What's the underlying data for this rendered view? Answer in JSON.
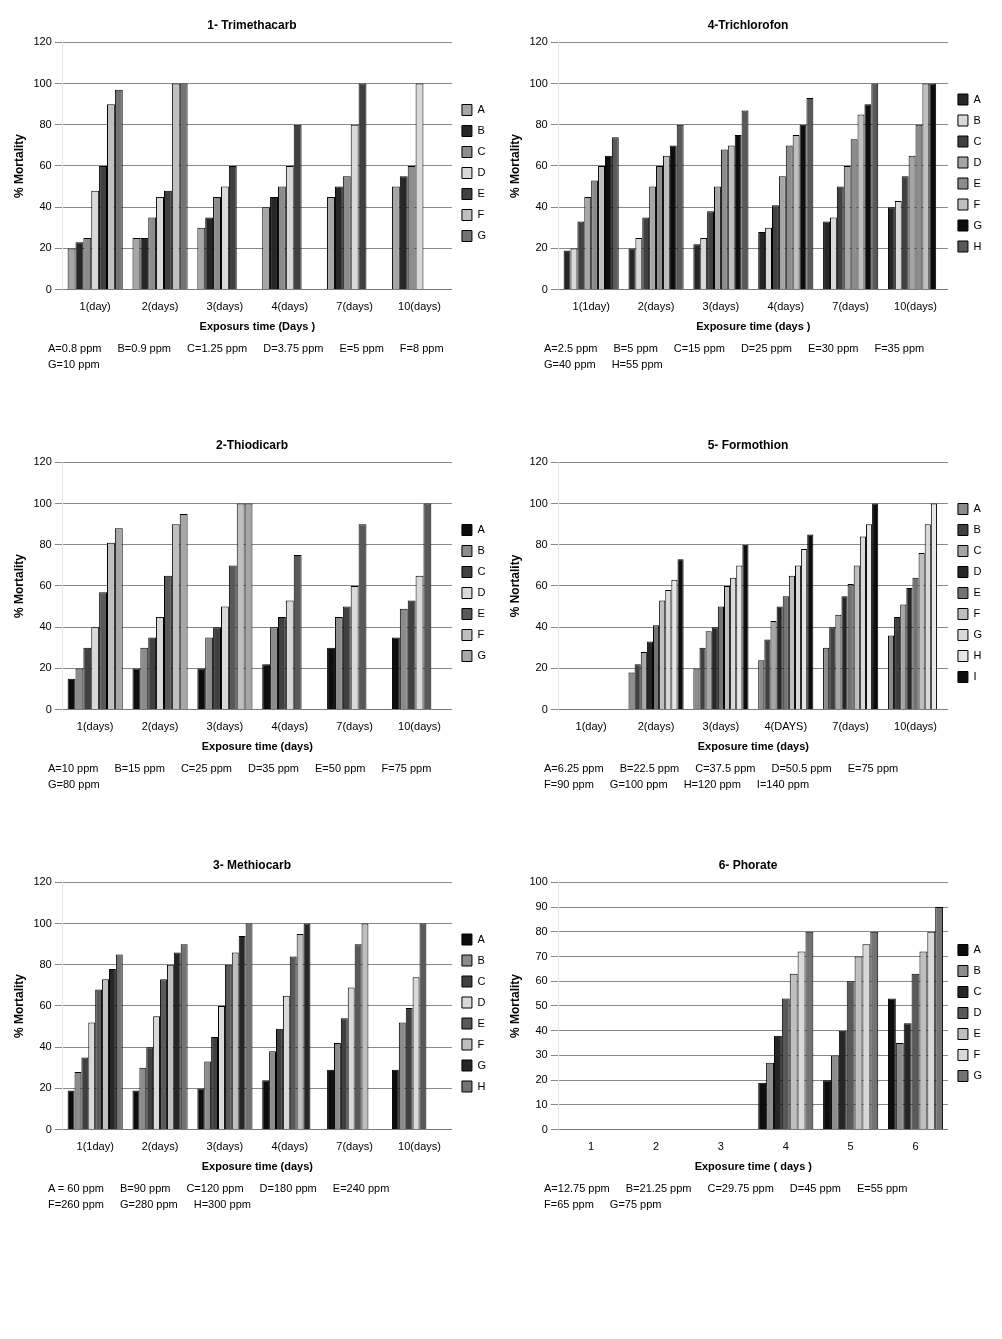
{
  "chart_data": [
    {
      "type": "bar",
      "title": "1- Trimethacarb",
      "xlabel": "Exposurs time (Days )",
      "ylabel": "% Mortality",
      "categories": [
        "1(day)",
        "2(days)",
        "3(days)",
        "4(days)",
        "7(days)",
        "10(days)"
      ],
      "ylim": [
        0,
        120
      ],
      "yticks": [
        0,
        20,
        40,
        60,
        80,
        100,
        120
      ],
      "grid": "y",
      "legend": "right",
      "series": [
        {
          "name": "A",
          "color": "#a6a6a6",
          "values": [
            20,
            25,
            30,
            40,
            45,
            50
          ]
        },
        {
          "name": "B",
          "color": "#262626",
          "values": [
            23,
            25,
            35,
            45,
            50,
            55
          ]
        },
        {
          "name": "C",
          "color": "#8c8c8c",
          "values": [
            25,
            35,
            45,
            50,
            55,
            60
          ]
        },
        {
          "name": "D",
          "color": "#d9d9d9",
          "values": [
            48,
            45,
            50,
            60,
            80,
            100
          ]
        },
        {
          "name": "E",
          "color": "#404040",
          "values": [
            60,
            48,
            60,
            80,
            100,
            null
          ]
        },
        {
          "name": "F",
          "color": "#bfbfbf",
          "values": [
            90,
            100,
            null,
            null,
            null,
            null
          ]
        },
        {
          "name": "G",
          "color": "#737373",
          "values": [
            97,
            100,
            null,
            null,
            null,
            null
          ]
        }
      ],
      "annotations": [
        "A=0.8 ppm",
        "B=0.9 ppm",
        "C=1.25 ppm",
        "D=3.75 ppm",
        "E=5 ppm",
        "F=8 ppm",
        "G=10 ppm"
      ]
    },
    {
      "type": "bar",
      "title": "4-Trichlorofon",
      "xlabel": "Exposure time (days )",
      "ylabel": "% Mortality",
      "categories": [
        "1(1day)",
        "2(days)",
        "3(days)",
        "4(days)",
        "7(days)",
        "10(days)"
      ],
      "ylim": [
        0,
        120
      ],
      "yticks": [
        0,
        20,
        40,
        60,
        80,
        100,
        120
      ],
      "grid": "y",
      "legend": "right",
      "series": [
        {
          "name": "A",
          "color": "#262626",
          "values": [
            19,
            20,
            22,
            28,
            33,
            40
          ]
        },
        {
          "name": "B",
          "color": "#d9d9d9",
          "values": [
            20,
            25,
            25,
            30,
            35,
            43
          ]
        },
        {
          "name": "C",
          "color": "#404040",
          "values": [
            33,
            35,
            38,
            41,
            50,
            55
          ]
        },
        {
          "name": "D",
          "color": "#a6a6a6",
          "values": [
            45,
            50,
            50,
            55,
            60,
            65
          ]
        },
        {
          "name": "E",
          "color": "#8c8c8c",
          "values": [
            53,
            60,
            68,
            70,
            73,
            80
          ]
        },
        {
          "name": "F",
          "color": "#bfbfbf",
          "values": [
            60,
            65,
            70,
            75,
            85,
            100
          ]
        },
        {
          "name": "G",
          "color": "#0d0d0d",
          "values": [
            65,
            70,
            75,
            80,
            90,
            100
          ]
        },
        {
          "name": "H",
          "color": "#595959",
          "values": [
            74,
            80,
            87,
            93,
            100,
            null
          ]
        }
      ],
      "annotations": [
        "A=2.5 ppm",
        "B=5 ppm",
        "C=15 ppm",
        "D=25 ppm",
        "E=30 ppm",
        "F=35 ppm",
        "G=40 ppm",
        "H=55 ppm"
      ]
    },
    {
      "type": "bar",
      "title": "2-Thiodicarb",
      "xlabel": "Exposure time (days)",
      "ylabel": "% Mortality",
      "categories": [
        "1(days)",
        "2(days)",
        "3(days)",
        "4(days)",
        "7(days)",
        "10(days)"
      ],
      "ylim": [
        0,
        120
      ],
      "yticks": [
        0,
        20,
        40,
        60,
        80,
        100,
        120
      ],
      "grid": "y",
      "legend": "right",
      "series": [
        {
          "name": "A",
          "color": "#0d0d0d",
          "values": [
            15,
            20,
            20,
            22,
            30,
            35
          ]
        },
        {
          "name": "B",
          "color": "#8c8c8c",
          "values": [
            20,
            30,
            35,
            40,
            45,
            49
          ]
        },
        {
          "name": "C",
          "color": "#404040",
          "values": [
            30,
            35,
            40,
            45,
            50,
            53
          ]
        },
        {
          "name": "D",
          "color": "#d9d9d9",
          "values": [
            40,
            45,
            50,
            53,
            60,
            65
          ]
        },
        {
          "name": "E",
          "color": "#595959",
          "values": [
            57,
            65,
            70,
            75,
            90,
            100
          ]
        },
        {
          "name": "F",
          "color": "#bfbfbf",
          "values": [
            81,
            90,
            100,
            null,
            null,
            null
          ]
        },
        {
          "name": "G",
          "color": "#a6a6a6",
          "values": [
            88,
            95,
            100,
            null,
            null,
            null
          ]
        }
      ],
      "annotations": [
        "A=10 ppm",
        "B=15 ppm",
        "C=25 ppm",
        "D=35 ppm",
        "E=50 ppm",
        "F=75 ppm",
        "G=80 ppm"
      ]
    },
    {
      "type": "bar",
      "title": "5- Formothion",
      "xlabel": "Exposure time (days)",
      "ylabel": "% Nortality",
      "categories": [
        "1(day)",
        "2(days)",
        "3(days)",
        "4(DAYS)",
        "7(days)",
        "10(days)"
      ],
      "ylim": [
        0,
        120
      ],
      "yticks": [
        0,
        20,
        40,
        60,
        80,
        100,
        120
      ],
      "grid": "y",
      "legend": "right",
      "series": [
        {
          "name": "A",
          "color": "#8c8c8c",
          "values": [
            0,
            18,
            20,
            24,
            30,
            36
          ]
        },
        {
          "name": "B",
          "color": "#404040",
          "values": [
            0,
            22,
            30,
            34,
            40,
            45
          ]
        },
        {
          "name": "C",
          "color": "#a6a6a6",
          "values": [
            0,
            28,
            38,
            43,
            46,
            51
          ]
        },
        {
          "name": "D",
          "color": "#262626",
          "values": [
            0,
            33,
            40,
            50,
            55,
            59
          ]
        },
        {
          "name": "E",
          "color": "#737373",
          "values": [
            0,
            41,
            50,
            55,
            61,
            64
          ]
        },
        {
          "name": "F",
          "color": "#bfbfbf",
          "values": [
            0,
            53,
            60,
            65,
            70,
            76
          ]
        },
        {
          "name": "G",
          "color": "#d9d9d9",
          "values": [
            0,
            58,
            64,
            70,
            84,
            90
          ]
        },
        {
          "name": "H",
          "color": "#e6e6e6",
          "values": [
            0,
            63,
            70,
            78,
            90,
            100
          ]
        },
        {
          "name": "I",
          "color": "#0d0d0d",
          "values": [
            0,
            73,
            80,
            85,
            100,
            null
          ]
        }
      ],
      "annotations": [
        "A=6.25 ppm",
        "B=22.5 ppm",
        "C=37.5 ppm",
        "D=50.5 ppm",
        "E=75 ppm",
        "F=90 ppm",
        "G=100 ppm",
        "H=120 ppm",
        "I=140 ppm"
      ]
    },
    {
      "type": "bar",
      "title": "3- Methiocarb",
      "xlabel": "Exposure time (days)",
      "ylabel": "% Mortality",
      "categories": [
        "1(1day)",
        "2(days)",
        "3(days)",
        "4(days)",
        "7(days)",
        "10(days)"
      ],
      "ylim": [
        0,
        120
      ],
      "yticks": [
        0,
        20,
        40,
        60,
        80,
        100,
        120
      ],
      "grid": "y",
      "legend": "right",
      "series": [
        {
          "name": "A",
          "color": "#0d0d0d",
          "values": [
            19,
            19,
            20,
            24,
            29,
            29
          ]
        },
        {
          "name": "B",
          "color": "#8c8c8c",
          "values": [
            28,
            30,
            33,
            38,
            42,
            52
          ]
        },
        {
          "name": "C",
          "color": "#404040",
          "values": [
            35,
            40,
            45,
            49,
            54,
            59
          ]
        },
        {
          "name": "D",
          "color": "#d9d9d9",
          "values": [
            52,
            55,
            60,
            65,
            69,
            74
          ]
        },
        {
          "name": "E",
          "color": "#595959",
          "values": [
            68,
            73,
            80,
            84,
            90,
            100
          ]
        },
        {
          "name": "F",
          "color": "#bfbfbf",
          "values": [
            73,
            80,
            86,
            95,
            100,
            null
          ]
        },
        {
          "name": "G",
          "color": "#262626",
          "values": [
            78,
            86,
            94,
            100,
            null,
            null
          ]
        },
        {
          "name": "H",
          "color": "#737373",
          "values": [
            85,
            90,
            100,
            null,
            null,
            null
          ]
        }
      ],
      "annotations": [
        "A = 60 ppm",
        "B=90 ppm",
        "C=120 ppm",
        "D=180 ppm",
        "E=240 ppm",
        "F=260 ppm",
        "G=280 ppm",
        "H=300 ppm"
      ]
    },
    {
      "type": "bar",
      "title": "6- Phorate",
      "xlabel": "Exposure time ( days )",
      "ylabel": "% Mortality",
      "categories": [
        "1",
        "2",
        "3",
        "4",
        "5",
        "6"
      ],
      "ylim": [
        0,
        100
      ],
      "yticks": [
        0,
        10,
        20,
        30,
        40,
        50,
        60,
        70,
        80,
        90,
        100
      ],
      "grid": "y",
      "legend": "right",
      "series": [
        {
          "name": "A",
          "color": "#0d0d0d",
          "values": [
            0,
            0,
            0,
            19,
            20,
            53
          ]
        },
        {
          "name": "B",
          "color": "#8c8c8c",
          "values": [
            0,
            0,
            0,
            27,
            30,
            35
          ]
        },
        {
          "name": "C",
          "color": "#262626",
          "values": [
            0,
            0,
            0,
            38,
            40,
            43
          ]
        },
        {
          "name": "D",
          "color": "#595959",
          "values": [
            0,
            0,
            0,
            53,
            60,
            63
          ]
        },
        {
          "name": "E",
          "color": "#bfbfbf",
          "values": [
            0,
            0,
            0,
            63,
            70,
            72
          ]
        },
        {
          "name": "F",
          "color": "#d9d9d9",
          "values": [
            0,
            0,
            0,
            72,
            75,
            80
          ]
        },
        {
          "name": "G",
          "color": "#737373",
          "values": [
            0,
            0,
            0,
            80,
            80,
            90
          ]
        }
      ],
      "annotations": [
        "A=12.75 ppm",
        "B=21.25 ppm",
        "C=29.75 ppm",
        "D=45 ppm",
        "E=55 ppm",
        "F=65 ppm",
        "G=75 ppm"
      ]
    }
  ]
}
